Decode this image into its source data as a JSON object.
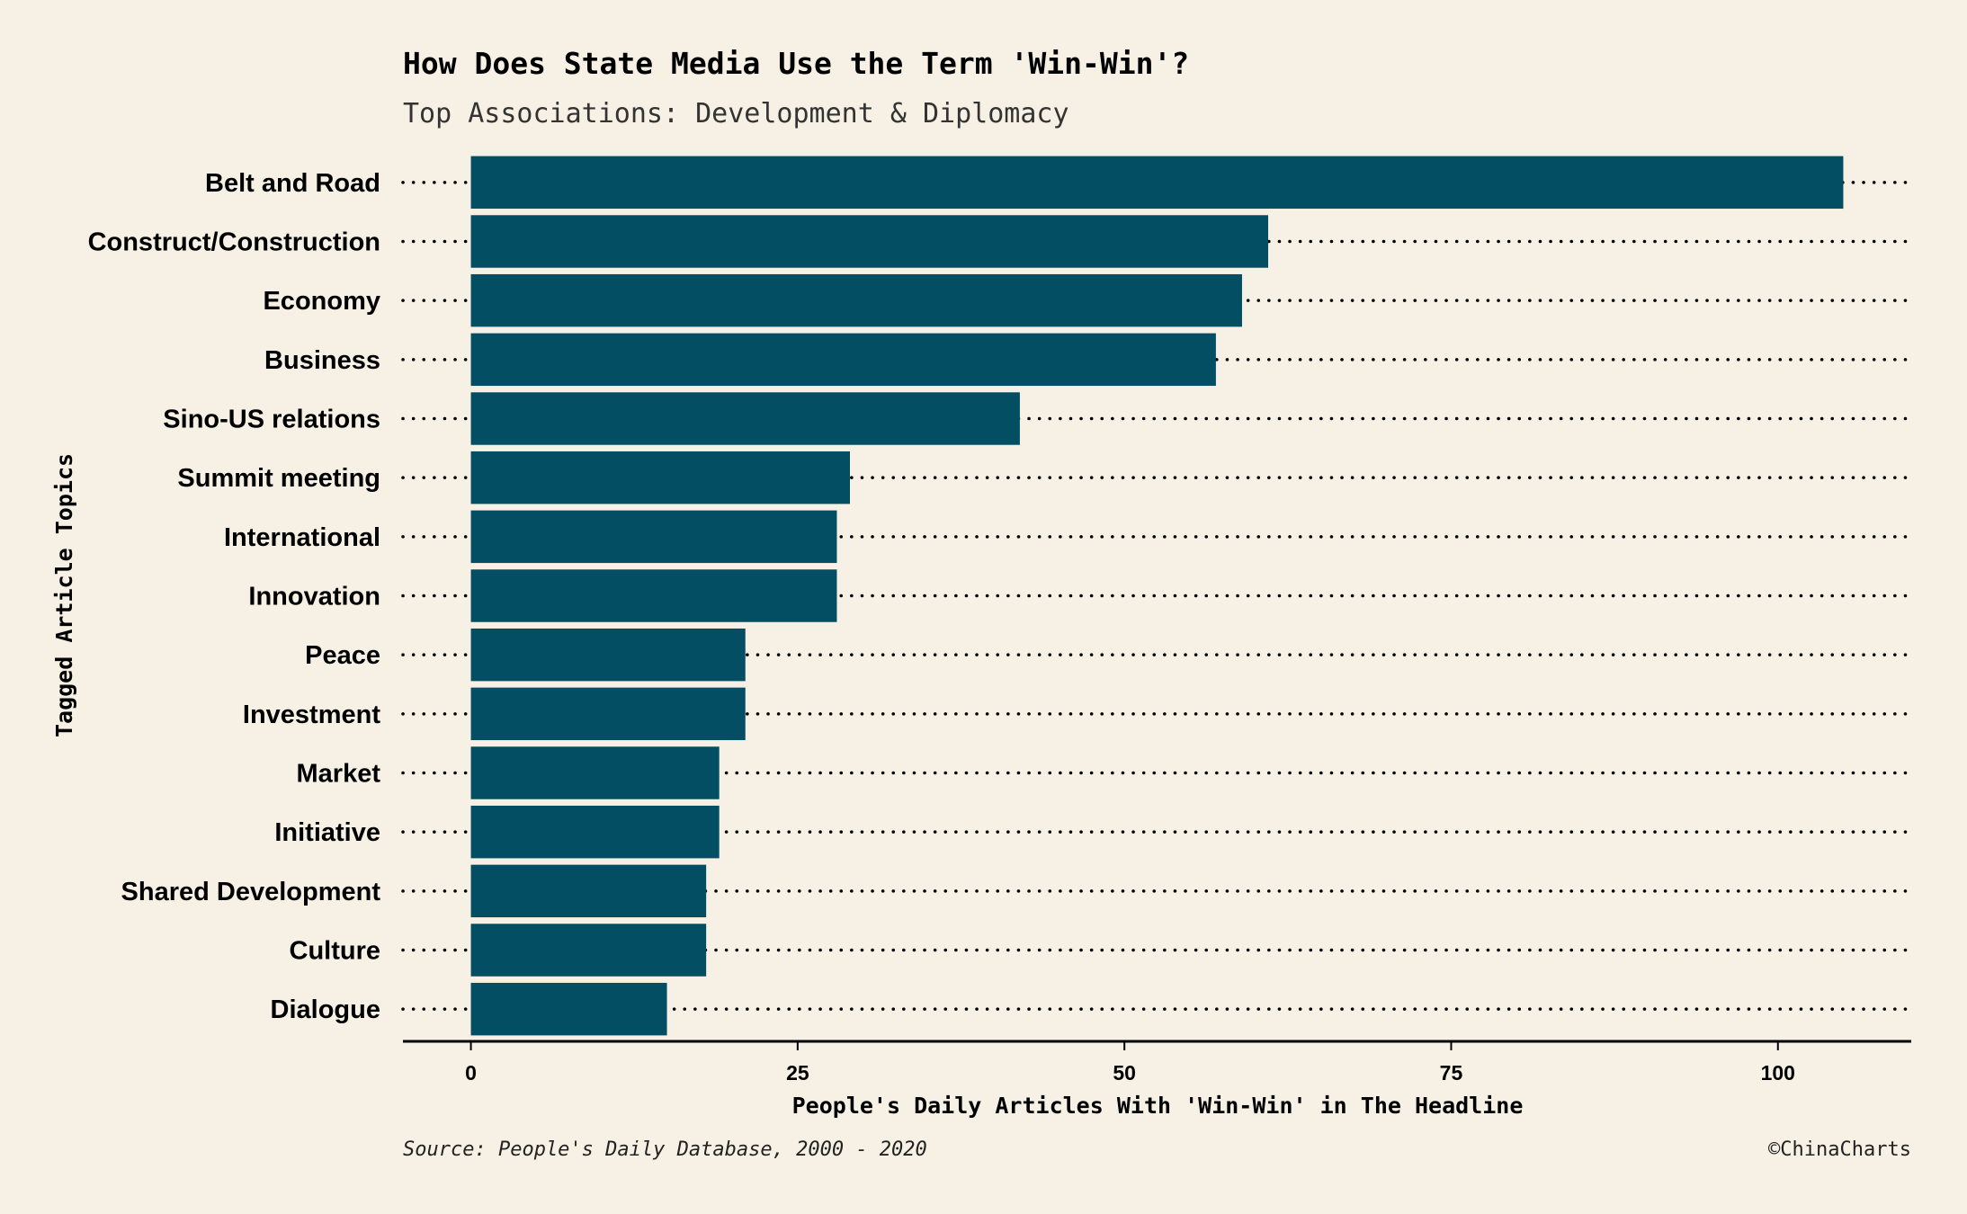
{
  "chart_data": {
    "type": "bar",
    "orientation": "horizontal",
    "title": "How Does State Media Use the Term 'Win-Win'?",
    "subtitle": "Top Associations: Development & Diplomacy",
    "xlabel": "People's Daily Articles With 'Win-Win' in The Headline",
    "ylabel": "Tagged Article Topics",
    "categories": [
      "Belt and Road",
      "Construct/Construction",
      "Economy",
      "Business",
      "Sino-US relations",
      "Summit meeting",
      "International",
      "Innovation",
      "Peace",
      "Investment",
      "Market",
      "Initiative",
      "Shared Development",
      "Culture",
      "Dialogue"
    ],
    "values": [
      105,
      61,
      59,
      57,
      42,
      29,
      28,
      28,
      21,
      21,
      19,
      19,
      18,
      18,
      15
    ],
    "xlim": [
      -5.2,
      110.2
    ],
    "xticks": [
      0,
      25,
      50,
      75,
      100
    ],
    "grid": "dotted horizontal guide per category",
    "caption": "Source: People's Daily Database, 2000 - 2020",
    "credit": "©ChinaCharts",
    "colors": {
      "bar": "#034e63",
      "background": "#f6f1e4",
      "guide": "#000000"
    }
  }
}
